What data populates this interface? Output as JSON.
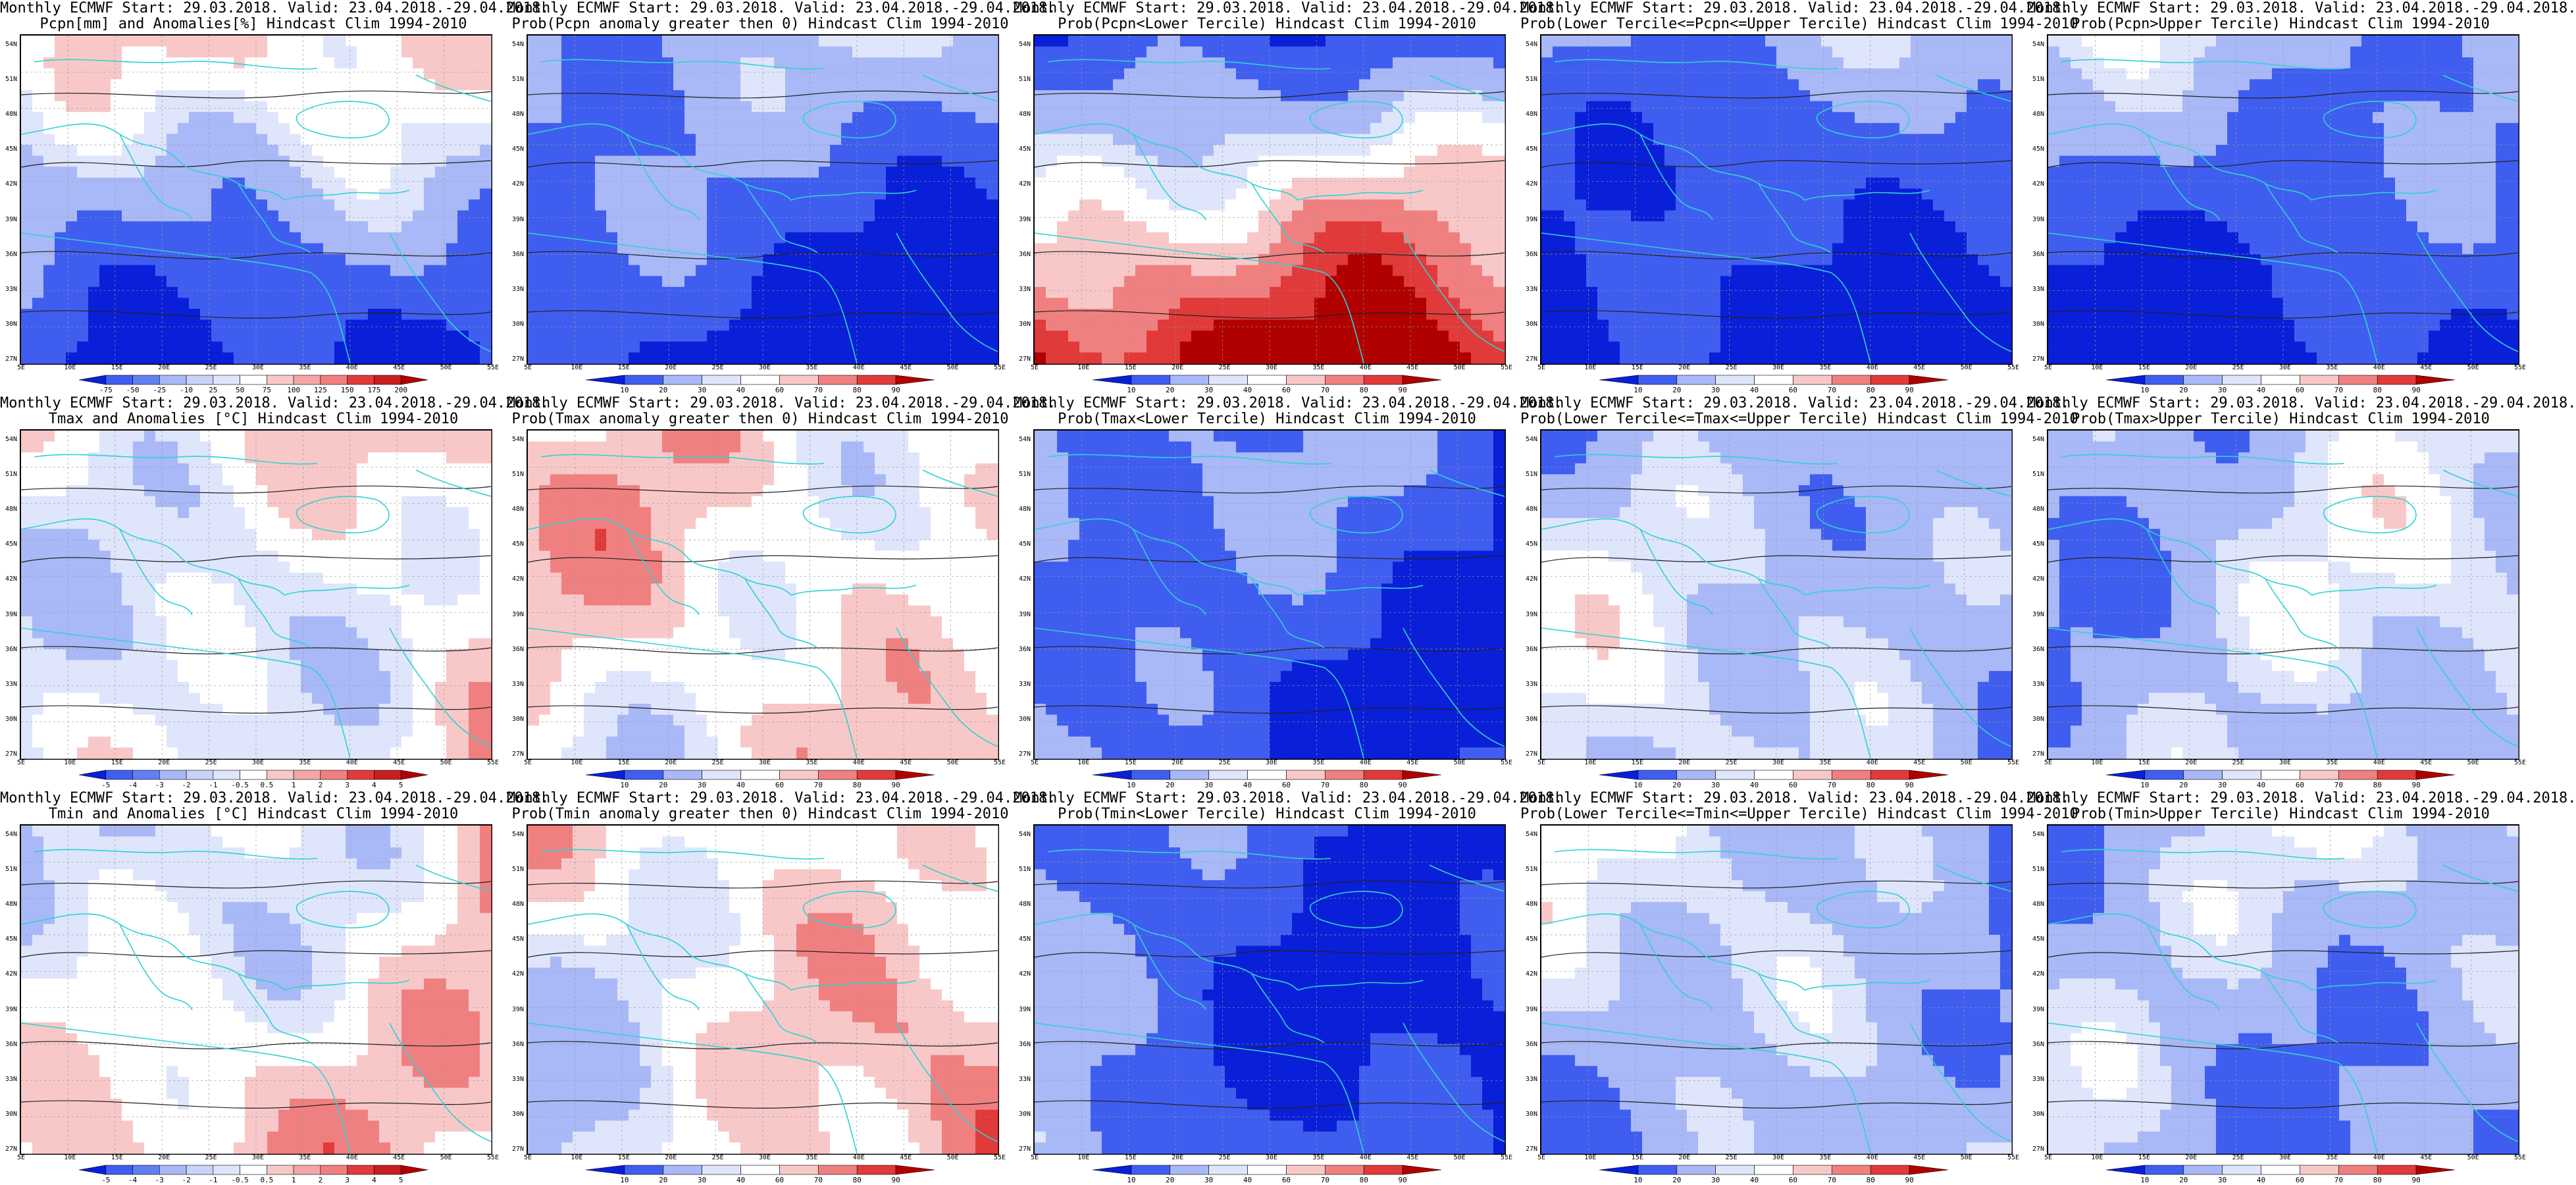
{
  "panels": [
    {
      "title1": "Monthly ECMWF Start: 29.03.2018. Valid: 23.04.2018.-29.04.2018.",
      "title2": "Pcpn[mm] and Anomalies[%] Hindcast Clim 1994-2010",
      "scheme": "anom",
      "cbar": [
        "-75",
        "-50",
        "-25",
        "-10",
        "25",
        "50",
        "75",
        "100",
        "125",
        "150",
        "175",
        "200"
      ]
    },
    {
      "title1": "Monthly ECMWF Start: 29.03.2018. Valid: 23.04.2018.-29.04.2018.",
      "title2": "Prob(Pcpn anomaly greater then 0) Hindcast Clim 1994-2010",
      "scheme": "wet",
      "cbar": [
        "10",
        "20",
        "30",
        "40",
        "60",
        "70",
        "80",
        "90"
      ]
    },
    {
      "title1": "Monthly ECMWF Start: 29.03.2018. Valid: 23.04.2018.-29.04.2018.",
      "title2": "Prob(Pcpn<Lower Tercile) Hindcast Clim 1994-2010",
      "scheme": "dry",
      "cbar": [
        "10",
        "20",
        "30",
        "40",
        "60",
        "70",
        "80",
        "90"
      ]
    },
    {
      "title1": "Monthly ECMWF Start: 29.03.2018. Valid: 23.04.2018.-29.04.2018.",
      "title2": "Prob(Lower Tercile<=Pcpn<=Upper Tercile) Hindcast Clim 1994-2010",
      "scheme": "wet",
      "cbar": [
        "10",
        "20",
        "30",
        "40",
        "60",
        "70",
        "80",
        "90"
      ]
    },
    {
      "title1": "Monthly ECMWF Start: 29.03.2018. Valid: 23.04.2018.-29.04.2018.",
      "title2": "Prob(Pcpn>Upper Tercile) Hindcast Clim 1994-2010",
      "scheme": "wet",
      "cbar": [
        "10",
        "20",
        "30",
        "40",
        "60",
        "70",
        "80",
        "90"
      ]
    },
    {
      "title1": "Monthly ECMWF Start: 29.03.2018. Valid: 23.04.2018.-29.04.2018.",
      "title2": "Tmax and Anomalies [°C] Hindcast Clim 1994-2010",
      "scheme": "warm",
      "cbar": [
        "-5",
        "-4",
        "-3",
        "-2",
        "-1",
        "-0.5",
        "0.5",
        "1",
        "2",
        "3",
        "4",
        "5"
      ]
    },
    {
      "title1": "Monthly ECMWF Start: 29.03.2018. Valid: 23.04.2018.-29.04.2018.",
      "title2": "Prob(Tmax anomaly greater then 0) Hindcast Clim 1994-2010",
      "scheme": "warm",
      "cbar": [
        "10",
        "20",
        "30",
        "40",
        "60",
        "70",
        "80",
        "90"
      ]
    },
    {
      "title1": "Monthly ECMWF Start: 29.03.2018. Valid: 23.04.2018.-29.04.2018.",
      "title2": "Prob(Tmax<Lower Tercile) Hindcast Clim 1994-2010",
      "scheme": "cold",
      "cbar": [
        "10",
        "20",
        "30",
        "40",
        "60",
        "70",
        "80",
        "90"
      ]
    },
    {
      "title1": "Monthly ECMWF Start: 29.03.2018. Valid: 23.04.2018.-29.04.2018.",
      "title2": "Prob(Lower Tercile<=Tmax<=Upper Tercile) Hindcast Clim 1994-2010",
      "scheme": "mid",
      "cbar": [
        "10",
        "20",
        "30",
        "40",
        "60",
        "70",
        "80",
        "90"
      ]
    },
    {
      "title1": "Monthly ECMWF Start: 29.03.2018. Valid: 23.04.2018.-29.04.2018.",
      "title2": "Prob(Tmax>Upper Tercile) Hindcast Clim 1994-2010",
      "scheme": "mid",
      "cbar": [
        "10",
        "20",
        "30",
        "40",
        "60",
        "70",
        "80",
        "90"
      ]
    },
    {
      "title1": "Monthly ECMWF Start: 29.03.2018. Valid: 23.04.2018.-29.04.2018.",
      "title2": "Tmin and Anomalies [°C] Hindcast Clim 1994-2010",
      "scheme": "warm",
      "cbar": [
        "-5",
        "-4",
        "-3",
        "-2",
        "-1",
        "-0.5",
        "0.5",
        "1",
        "2",
        "3",
        "4",
        "5"
      ]
    },
    {
      "title1": "Monthly ECMWF Start: 29.03.2018. Valid: 23.04.2018.-29.04.2018.",
      "title2": "Prob(Tmin anomaly greater then 0) Hindcast Clim 1994-2010",
      "scheme": "warm",
      "cbar": [
        "10",
        "20",
        "30",
        "40",
        "60",
        "70",
        "80",
        "90"
      ]
    },
    {
      "title1": "Monthly ECMWF Start: 29.03.2018. Valid: 23.04.2018.-29.04.2018.",
      "title2": "Prob(Tmin<Lower Tercile) Hindcast Clim 1994-2010",
      "scheme": "cold",
      "cbar": [
        "10",
        "20",
        "30",
        "40",
        "60",
        "70",
        "80",
        "90"
      ]
    },
    {
      "title1": "Monthly ECMWF Start: 29.03.2018. Valid: 23.04.2018.-29.04.2018.",
      "title2": "Prob(Lower Tercile<=Tmin<=Upper Tercile) Hindcast Clim 1994-2010",
      "scheme": "mid",
      "cbar": [
        "10",
        "20",
        "30",
        "40",
        "60",
        "70",
        "80",
        "90"
      ]
    },
    {
      "title1": "Monthly ECMWF Start: 29.03.2018. Valid: 23.04.2018.-29.04.2018.",
      "title2": "Prob(Tmin>Upper Tercile) Hindcast Clim 1994-2010",
      "scheme": "mid",
      "cbar": [
        "10",
        "20",
        "30",
        "40",
        "60",
        "70",
        "80",
        "90"
      ]
    }
  ],
  "lat_ticks": [
    "54N",
    "51N",
    "48N",
    "45N",
    "42N",
    "39N",
    "36N",
    "33N",
    "30N",
    "27N"
  ],
  "lon_ticks": [
    "5E",
    "10E",
    "15E",
    "20E",
    "25E",
    "30E",
    "35E",
    "40E",
    "45E",
    "50E",
    "55E"
  ],
  "colors": {
    "deep_blue": "#0a1fd8",
    "blue": "#3f5ef0",
    "light_blue": "#a9b8f6",
    "pale_blue": "#dfe5fb",
    "white": "#ffffff",
    "pale_red": "#f8c8c8",
    "light_red": "#f08080",
    "red": "#e03a3a",
    "deep_red": "#b00000",
    "coast": "#2fd2d2",
    "contour": "#222222"
  }
}
